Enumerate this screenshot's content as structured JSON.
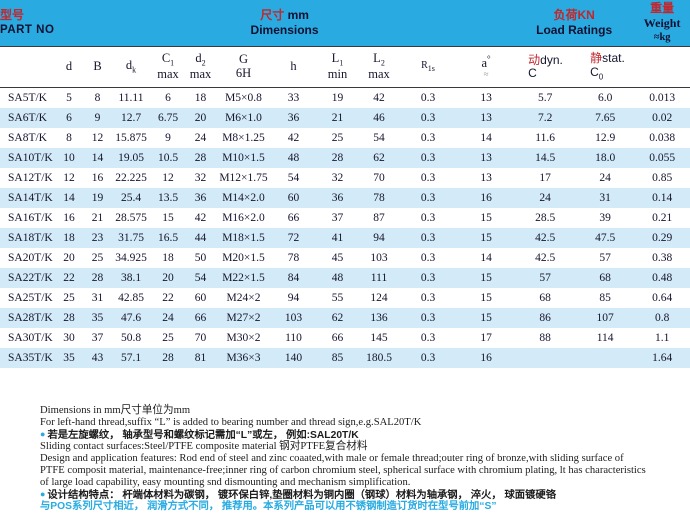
{
  "colors": {
    "band_cyan": "#29abe2",
    "row_blue": "#d3eaf8",
    "accent_red": "#c1272d"
  },
  "header": {
    "part_no_cn": "型号",
    "part_no_en": "PART NO",
    "dims_cn": "尺寸",
    "dims_unit": "mm",
    "dims_en": "Dimensions",
    "load_cn": "负荷KN",
    "load_en": "Load Ratings",
    "weight_cn": "重量",
    "weight_en": "Weight",
    "weight_unit": "≈kg"
  },
  "table": {
    "columns": [
      {
        "base": "d"
      },
      {
        "base": "B"
      },
      {
        "base": "d",
        "sub": "k"
      },
      {
        "base": "C",
        "sub": "1",
        "line2": "max"
      },
      {
        "base": "d",
        "sub": "2",
        "line2": "max"
      },
      {
        "base": "G",
        "line2": "6H"
      },
      {
        "base": "h"
      },
      {
        "base": "L",
        "sub": "1",
        "line2": "min"
      },
      {
        "base": "L",
        "sub": "2",
        "line2": "max"
      },
      {
        "base": "R",
        "sub": "1s",
        "small": true
      },
      {
        "base": "a",
        "sup": "°",
        "line2": "≈",
        "approx": true
      },
      {
        "cn": "动",
        "base": "dyn.",
        "line2": "C",
        "load": true
      },
      {
        "cn": "静",
        "base": "stat.",
        "line2": "C",
        "line2_sub": "0",
        "load": true
      }
    ],
    "rows": [
      [
        "SA5T/K",
        "5",
        "8",
        "11.11",
        "6",
        "18",
        "M5×0.8",
        "33",
        "19",
        "42",
        "0.3",
        "13",
        "5.7",
        "6.0",
        "0.013"
      ],
      [
        "SA6T/K",
        "6",
        "9",
        "12.7",
        "6.75",
        "20",
        "M6×1.0",
        "36",
        "21",
        "46",
        "0.3",
        "13",
        "7.2",
        "7.65",
        "0.02"
      ],
      [
        "SA8T/K",
        "8",
        "12",
        "15.875",
        "9",
        "24",
        "M8×1.25",
        "42",
        "25",
        "54",
        "0.3",
        "14",
        "11.6",
        "12.9",
        "0.038"
      ],
      [
        "SA10T/K",
        "10",
        "14",
        "19.05",
        "10.5",
        "28",
        "M10×1.5",
        "48",
        "28",
        "62",
        "0.3",
        "13",
        "14.5",
        "18.0",
        "0.055"
      ],
      [
        "SA12T/K",
        "12",
        "16",
        "22.225",
        "12",
        "32",
        "M12×1.75",
        "54",
        "32",
        "70",
        "0.3",
        "13",
        "17",
        "24",
        "0.85"
      ],
      [
        "SA14T/K",
        "14",
        "19",
        "25.4",
        "13.5",
        "36",
        "M14×2.0",
        "60",
        "36",
        "78",
        "0.3",
        "16",
        "24",
        "31",
        "0.14"
      ],
      [
        "SA16T/K",
        "16",
        "21",
        "28.575",
        "15",
        "42",
        "M16×2.0",
        "66",
        "37",
        "87",
        "0.3",
        "15",
        "28.5",
        "39",
        "0.21"
      ],
      [
        "SA18T/K",
        "18",
        "23",
        "31.75",
        "16.5",
        "44",
        "M18×1.5",
        "72",
        "41",
        "94",
        "0.3",
        "15",
        "42.5",
        "47.5",
        "0.29"
      ],
      [
        "SA20T/K",
        "20",
        "25",
        "34.925",
        "18",
        "50",
        "M20×1.5",
        "78",
        "45",
        "103",
        "0.3",
        "14",
        "42.5",
        "57",
        "0.38"
      ],
      [
        "SA22T/K",
        "22",
        "28",
        "38.1",
        "20",
        "54",
        "M22×1.5",
        "84",
        "48",
        "111",
        "0.3",
        "15",
        "57",
        "68",
        "0.48"
      ],
      [
        "SA25T/K",
        "25",
        "31",
        "42.85",
        "22",
        "60",
        "M24×2",
        "94",
        "55",
        "124",
        "0.3",
        "15",
        "68",
        "85",
        "0.64"
      ],
      [
        "SA28T/K",
        "28",
        "35",
        "47.6",
        "24",
        "66",
        "M27×2",
        "103",
        "62",
        "136",
        "0.3",
        "15",
        "86",
        "107",
        "0.8"
      ],
      [
        "SA30T/K",
        "30",
        "37",
        "50.8",
        "25",
        "70",
        "M30×2",
        "110",
        "66",
        "145",
        "0.3",
        "17",
        "88",
        "114",
        "1.1"
      ],
      [
        "SA35T/K",
        "35",
        "43",
        "57.1",
        "28",
        "81",
        "M36×3",
        "140",
        "85",
        "180.5",
        "0.3",
        "16",
        "",
        "",
        "1.64"
      ]
    ]
  },
  "footnotes": [
    {
      "text": "Dimensions in mm尺寸单位为mm"
    },
    {
      "text": "For left-hand thread,suffix “L” is added to bearing number and thread sign,e.g.SAL20T/K"
    },
    {
      "text": "若是左旋螺纹， 轴承型号和螺纹标记需加“L”或左， 例如:SAL20T/K",
      "bullet": true,
      "cn": true
    },
    {
      "text": "Sliding contact surfaces:Steel/PTFE composite material 钢对PTFE复合材料"
    },
    {
      "text": "Design and application features: Rod end of steel and zinc coaated,with male or female thread;outer ring of bronze,with sliding surface of"
    },
    {
      "text": "PTFE composit material, maintenance-free;inner ring of carbon chromium steel, spherical surface with chromium plating, lt has characteristics"
    },
    {
      "text": "of large load capability, easy mounting snd dismounting and  mechanism simplification."
    },
    {
      "text": "设计结构特点： 杆端体材料为碳钢， 镀环保白锌,垫圈材料为铜内圈（钢球）材料为轴承钢， 淬火， 球面镀硬铬",
      "bullet": true,
      "cn": true
    },
    {
      "text": "与POS系列尺寸相近， 润滑方式不同， 推荐用。本系列产品可以用不锈钢制造订货时在型号前加“S”",
      "cn": true,
      "cyan": true
    }
  ]
}
